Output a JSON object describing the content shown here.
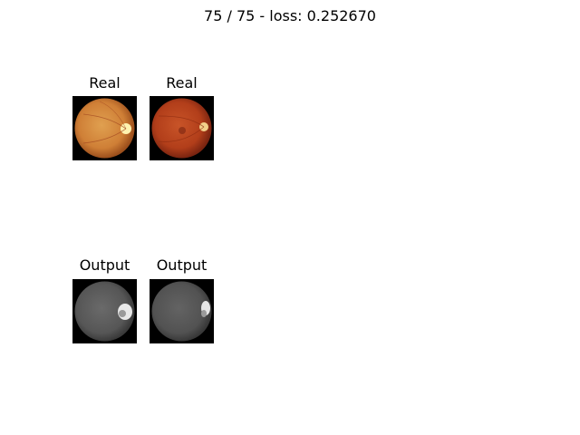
{
  "figure": {
    "title": "75 / 75 - loss: 0.252670"
  },
  "rows": [
    {
      "panels": [
        {
          "label": "Real",
          "kind": "fundus-color-a"
        },
        {
          "label": "Real",
          "kind": "fundus-color-b"
        }
      ]
    },
    {
      "panels": [
        {
          "label": "Output",
          "kind": "fundus-gray-a"
        },
        {
          "label": "Output",
          "kind": "fundus-gray-b"
        }
      ]
    }
  ],
  "colors": {
    "background": "#ffffff",
    "image_background": "#000000",
    "real_a_fundus": "#d0843a",
    "real_b_fundus": "#b8401c",
    "output_gray": "#595959"
  }
}
